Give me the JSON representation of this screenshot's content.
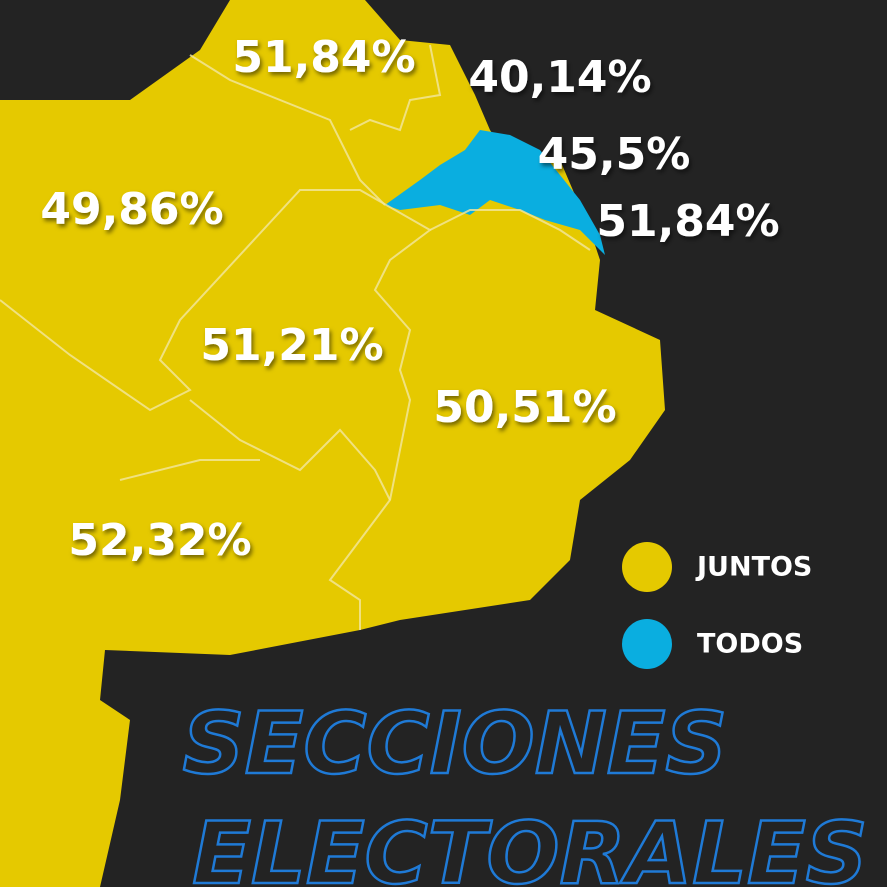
{
  "map": {
    "title": "SECCIONES ELECTORALES",
    "regions": [
      {
        "label": "51,84%",
        "color": "#e5c900"
      },
      {
        "label": "40,14%",
        "color": "#e5c900"
      },
      {
        "label": "45,5%",
        "color": "#0aaee0"
      },
      {
        "label": "51,84%",
        "color": "#e5c900"
      },
      {
        "label": "49,86%",
        "color": "#e5c900"
      },
      {
        "label": "51,21%",
        "color": "#e5c900"
      },
      {
        "label": "50,51%",
        "color": "#e5c900"
      },
      {
        "label": "52,32%",
        "color": "#e5c900"
      }
    ],
    "legend": [
      {
        "label": "JUNTOS",
        "color": "#e5c900"
      },
      {
        "label": "TODOS",
        "color": "#0aaee0"
      }
    ]
  }
}
